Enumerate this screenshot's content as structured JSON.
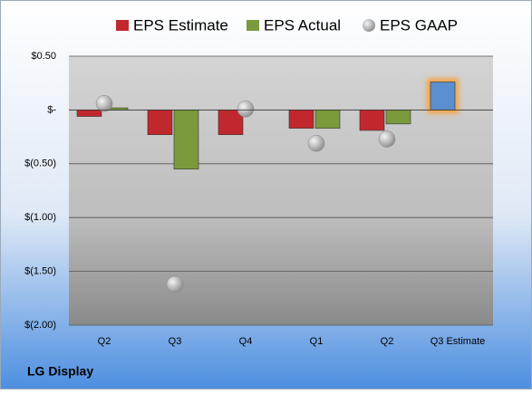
{
  "chart_data": {
    "type": "bar",
    "caption": "LG Display",
    "categories": [
      "Q2",
      "Q3",
      "Q4",
      "Q1",
      "Q2",
      "Q3 Estimate"
    ],
    "series": [
      {
        "name": "EPS Estimate",
        "color": "#c0282d",
        "highlight_color": "#5b8fd0",
        "values": [
          -0.06,
          -0.23,
          -0.23,
          -0.17,
          -0.19,
          0.26
        ]
      },
      {
        "name": "EPS Actual",
        "color": "#7a9a3c",
        "values": [
          0.02,
          -0.55,
          null,
          -0.17,
          -0.13,
          null
        ]
      },
      {
        "name": "EPS GAAP",
        "color": "#a8a8a8",
        "marker": "circle",
        "values": [
          0.06,
          -1.62,
          0.01,
          -0.31,
          -0.27,
          null
        ]
      }
    ],
    "ylim": [
      -2,
      0.5
    ],
    "yticks": [
      {
        "value": -2,
        "label": "$(2.00)"
      },
      {
        "value": -1.5,
        "label": "$(1.50)"
      },
      {
        "value": -1,
        "label": "$(1.00)"
      },
      {
        "value": -0.5,
        "label": "$(0.50)"
      },
      {
        "value": 0,
        "label": "$-"
      },
      {
        "value": 0.5,
        "label": "$0.50"
      }
    ],
    "grid": true,
    "legend": "top"
  }
}
